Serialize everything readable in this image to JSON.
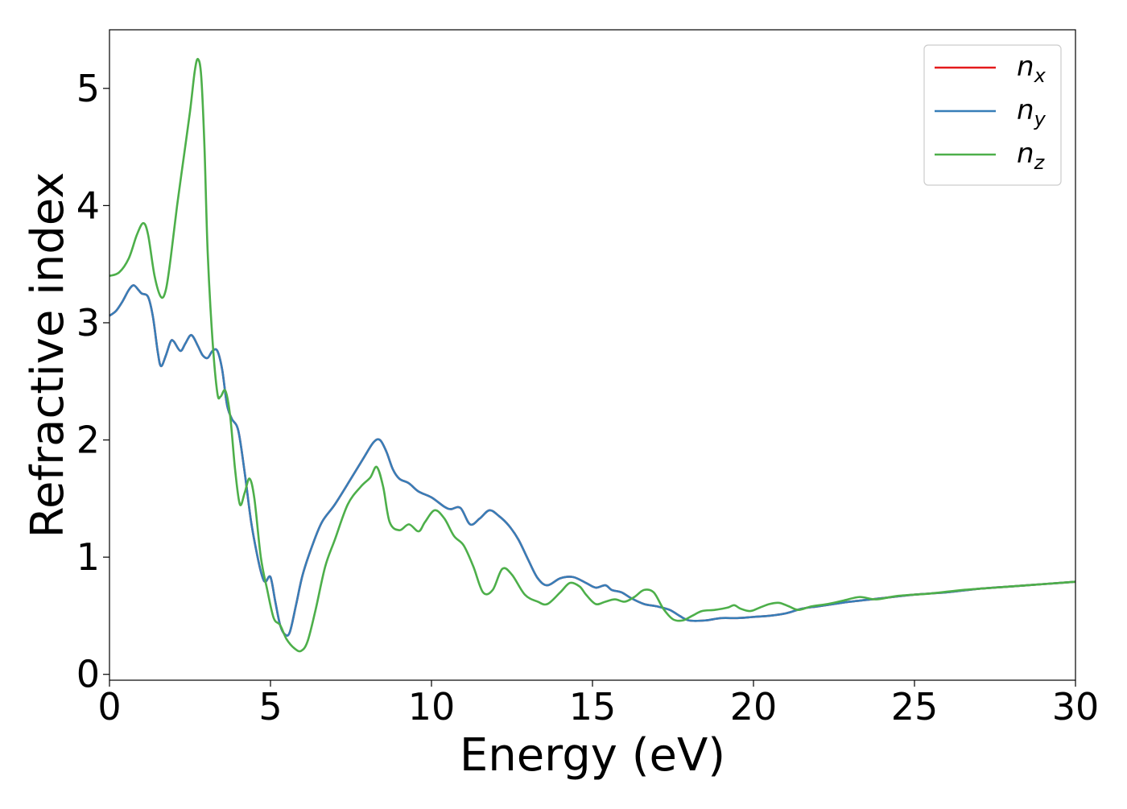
{
  "chart_data": {
    "type": "line",
    "title": "",
    "xlabel": "Energy (eV)",
    "ylabel": "Refractive index",
    "xlim": [
      0,
      30
    ],
    "ylim": [
      -0.05,
      5.5
    ],
    "xticks": [
      0,
      5,
      10,
      15,
      20,
      25,
      30
    ],
    "yticks": [
      0,
      1,
      2,
      3,
      4,
      5
    ],
    "xtick_labels": [
      "0",
      "5",
      "10",
      "15",
      "20",
      "25",
      "30"
    ],
    "ytick_labels": [
      "0",
      "1",
      "2",
      "3",
      "4",
      "5"
    ],
    "grid": false,
    "legend_position": "top-right",
    "series": [
      {
        "name": "n_x",
        "legend_base": "n",
        "legend_sub": "x",
        "color": "#e41a1c",
        "x": [
          0,
          0.2,
          0.4,
          0.6,
          0.75,
          0.9,
          1.0,
          1.2,
          1.35,
          1.5,
          1.6,
          1.75,
          1.9,
          2.0,
          2.2,
          2.35,
          2.5,
          2.6,
          2.75,
          2.9,
          3.05,
          3.2,
          3.35,
          3.5,
          3.65,
          3.8,
          4.0,
          4.2,
          4.4,
          4.6,
          4.75,
          4.85,
          5.0,
          5.15,
          5.3,
          5.45,
          5.6,
          5.8,
          6.0,
          6.3,
          6.6,
          7.0,
          7.5,
          7.9,
          8.2,
          8.4,
          8.6,
          8.8,
          9.0,
          9.3,
          9.6,
          10.0,
          10.4,
          10.6,
          10.9,
          11.2,
          11.5,
          11.8,
          12.1,
          12.4,
          12.7,
          13.0,
          13.3,
          13.6,
          14.0,
          14.4,
          14.8,
          15.1,
          15.4,
          15.6,
          15.9,
          16.2,
          16.6,
          17.0,
          17.4,
          17.7,
          18.0,
          18.5,
          19.0,
          19.5,
          20.0,
          20.5,
          21.0,
          21.5,
          22.0,
          22.5,
          23.0,
          24.0,
          25.0,
          26.0,
          27.0,
          28.0,
          29.0,
          30.0
        ],
        "y": [
          3.06,
          3.1,
          3.18,
          3.28,
          3.32,
          3.28,
          3.25,
          3.22,
          3.05,
          2.75,
          2.63,
          2.72,
          2.84,
          2.84,
          2.76,
          2.82,
          2.89,
          2.88,
          2.8,
          2.72,
          2.7,
          2.76,
          2.76,
          2.6,
          2.3,
          2.18,
          2.08,
          1.72,
          1.3,
          1.0,
          0.83,
          0.79,
          0.83,
          0.62,
          0.42,
          0.34,
          0.36,
          0.6,
          0.85,
          1.1,
          1.3,
          1.45,
          1.67,
          1.85,
          1.98,
          2.0,
          1.9,
          1.75,
          1.67,
          1.63,
          1.56,
          1.51,
          1.43,
          1.41,
          1.42,
          1.28,
          1.33,
          1.4,
          1.35,
          1.27,
          1.15,
          0.98,
          0.82,
          0.76,
          0.82,
          0.83,
          0.78,
          0.74,
          0.76,
          0.72,
          0.7,
          0.65,
          0.6,
          0.58,
          0.55,
          0.5,
          0.46,
          0.46,
          0.48,
          0.48,
          0.49,
          0.5,
          0.52,
          0.56,
          0.58,
          0.6,
          0.62,
          0.65,
          0.68,
          0.7,
          0.73,
          0.75,
          0.77,
          0.79
        ]
      },
      {
        "name": "n_y",
        "legend_base": "n",
        "legend_sub": "y",
        "color": "#377eb8",
        "x": [
          0,
          0.2,
          0.4,
          0.6,
          0.75,
          0.9,
          1.0,
          1.2,
          1.35,
          1.5,
          1.6,
          1.75,
          1.9,
          2.0,
          2.2,
          2.35,
          2.5,
          2.6,
          2.75,
          2.9,
          3.05,
          3.2,
          3.35,
          3.5,
          3.65,
          3.8,
          4.0,
          4.2,
          4.4,
          4.6,
          4.75,
          4.85,
          5.0,
          5.15,
          5.3,
          5.45,
          5.6,
          5.8,
          6.0,
          6.3,
          6.6,
          7.0,
          7.5,
          7.9,
          8.2,
          8.4,
          8.6,
          8.8,
          9.0,
          9.3,
          9.6,
          10.0,
          10.4,
          10.6,
          10.9,
          11.2,
          11.5,
          11.8,
          12.1,
          12.4,
          12.7,
          13.0,
          13.3,
          13.6,
          14.0,
          14.4,
          14.8,
          15.1,
          15.4,
          15.6,
          15.9,
          16.2,
          16.6,
          17.0,
          17.4,
          17.7,
          18.0,
          18.5,
          19.0,
          19.5,
          20.0,
          20.5,
          21.0,
          21.5,
          22.0,
          22.5,
          23.0,
          24.0,
          25.0,
          26.0,
          27.0,
          28.0,
          29.0,
          30.0
        ],
        "y": [
          3.06,
          3.1,
          3.18,
          3.28,
          3.32,
          3.28,
          3.25,
          3.22,
          3.05,
          2.75,
          2.63,
          2.72,
          2.84,
          2.84,
          2.76,
          2.82,
          2.89,
          2.88,
          2.8,
          2.72,
          2.7,
          2.76,
          2.76,
          2.6,
          2.3,
          2.18,
          2.08,
          1.72,
          1.3,
          1.0,
          0.83,
          0.79,
          0.83,
          0.62,
          0.42,
          0.34,
          0.36,
          0.6,
          0.85,
          1.1,
          1.3,
          1.45,
          1.67,
          1.85,
          1.98,
          2.0,
          1.9,
          1.75,
          1.67,
          1.63,
          1.56,
          1.51,
          1.43,
          1.41,
          1.42,
          1.28,
          1.33,
          1.4,
          1.35,
          1.27,
          1.15,
          0.98,
          0.82,
          0.76,
          0.82,
          0.83,
          0.78,
          0.74,
          0.76,
          0.72,
          0.7,
          0.65,
          0.6,
          0.58,
          0.55,
          0.5,
          0.46,
          0.46,
          0.48,
          0.48,
          0.49,
          0.5,
          0.52,
          0.56,
          0.58,
          0.6,
          0.62,
          0.65,
          0.68,
          0.7,
          0.73,
          0.75,
          0.77,
          0.79
        ]
      },
      {
        "name": "n_z",
        "legend_base": "n",
        "legend_sub": "z",
        "color": "#4daf4a",
        "x": [
          0,
          0.3,
          0.6,
          0.85,
          1.05,
          1.2,
          1.4,
          1.6,
          1.75,
          1.9,
          2.1,
          2.3,
          2.5,
          2.65,
          2.75,
          2.85,
          2.95,
          3.05,
          3.2,
          3.35,
          3.45,
          3.6,
          3.75,
          3.9,
          4.05,
          4.2,
          4.35,
          4.5,
          4.7,
          4.9,
          5.1,
          5.3,
          5.5,
          5.75,
          5.95,
          6.15,
          6.4,
          6.7,
          7.0,
          7.4,
          7.8,
          8.1,
          8.3,
          8.5,
          8.7,
          9.0,
          9.3,
          9.6,
          9.8,
          10.1,
          10.4,
          10.7,
          11.0,
          11.3,
          11.6,
          11.9,
          12.2,
          12.5,
          12.9,
          13.3,
          13.6,
          14.0,
          14.3,
          14.6,
          14.8,
          15.1,
          15.4,
          15.7,
          16.0,
          16.3,
          16.6,
          16.9,
          17.2,
          17.5,
          17.8,
          18.1,
          18.4,
          18.8,
          19.2,
          19.4,
          19.6,
          19.9,
          20.2,
          20.5,
          20.8,
          21.1,
          21.4,
          21.8,
          22.3,
          22.8,
          23.3,
          23.8,
          24.5,
          25.5,
          26.5,
          27.5,
          28.5,
          30.0
        ],
        "y": [
          3.4,
          3.43,
          3.55,
          3.75,
          3.85,
          3.75,
          3.4,
          3.22,
          3.28,
          3.55,
          4.0,
          4.4,
          4.8,
          5.15,
          5.25,
          5.1,
          4.5,
          3.6,
          2.85,
          2.4,
          2.37,
          2.42,
          2.2,
          1.75,
          1.45,
          1.55,
          1.67,
          1.5,
          1.0,
          0.72,
          0.48,
          0.42,
          0.3,
          0.22,
          0.2,
          0.28,
          0.55,
          0.92,
          1.15,
          1.45,
          1.6,
          1.68,
          1.77,
          1.6,
          1.3,
          1.23,
          1.28,
          1.22,
          1.3,
          1.4,
          1.33,
          1.18,
          1.1,
          0.92,
          0.7,
          0.72,
          0.9,
          0.85,
          0.68,
          0.62,
          0.6,
          0.7,
          0.78,
          0.75,
          0.68,
          0.6,
          0.62,
          0.64,
          0.62,
          0.66,
          0.72,
          0.7,
          0.56,
          0.47,
          0.46,
          0.5,
          0.54,
          0.55,
          0.57,
          0.59,
          0.56,
          0.54,
          0.57,
          0.6,
          0.61,
          0.58,
          0.55,
          0.58,
          0.6,
          0.63,
          0.66,
          0.64,
          0.67,
          0.69,
          0.72,
          0.74,
          0.76,
          0.79
        ]
      }
    ]
  }
}
